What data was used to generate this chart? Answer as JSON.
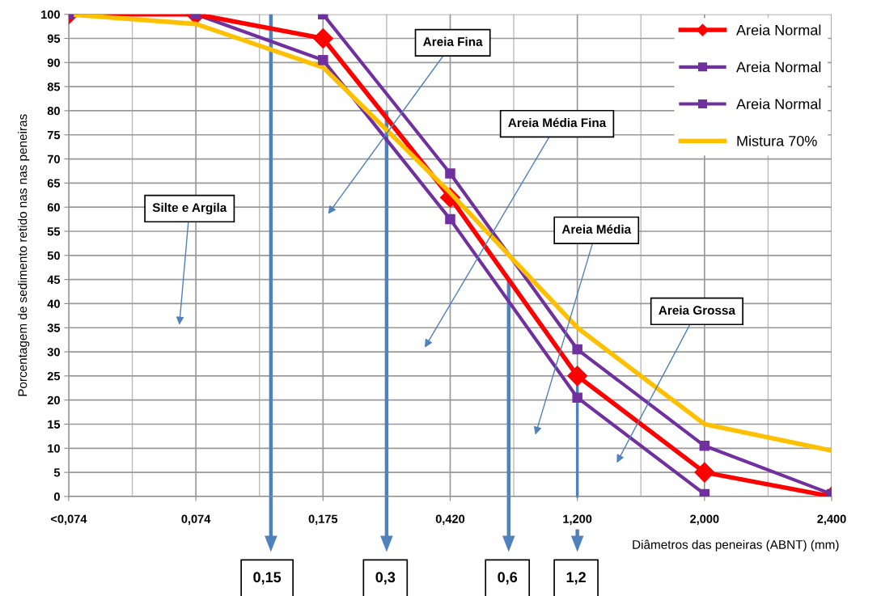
{
  "chart_data": {
    "type": "line",
    "xlabel": "Diâmetros das peneiras (ABNT) (mm)",
    "ylabel": "Porcentagem de sedimento retido nas nas peneiras",
    "categories": [
      "<0,074",
      "0,074",
      "0,175",
      "0,420",
      "1,200",
      "2,000",
      "2,400"
    ],
    "series": [
      {
        "name": "Areia Normal",
        "color": "#ff0000",
        "marker": "diamond",
        "values": [
          100,
          100,
          95,
          62,
          25,
          5,
          0
        ]
      },
      {
        "name": "Areia Normal",
        "color": "#7030a0",
        "marker": "square",
        "values": [
          null,
          null,
          100,
          67,
          30.5,
          10.5,
          0.5
        ]
      },
      {
        "name": "Areia Normal",
        "color": "#7030a0",
        "marker": "square",
        "values": [
          100,
          100,
          90.5,
          57.5,
          20.5,
          0.5,
          null
        ]
      },
      {
        "name": "Mistura 70%",
        "color": "#ffc000",
        "marker": "none",
        "values": [
          100,
          98,
          89,
          63,
          35,
          15,
          9.5
        ]
      }
    ],
    "ylim": [
      0,
      100
    ],
    "yticks": [
      0,
      5,
      10,
      15,
      20,
      25,
      30,
      35,
      40,
      45,
      50,
      55,
      60,
      65,
      70,
      75,
      80,
      85,
      90,
      95,
      100
    ],
    "grid": true,
    "legend": "top right",
    "line_style": "solid",
    "annotations": [
      "Areia Fina",
      "Areia Média Fina",
      "Silte e Argila",
      "Areia Média",
      "Areia Grossa",
      "0,15",
      "0,3",
      "0,6",
      "1,2"
    ]
  }
}
